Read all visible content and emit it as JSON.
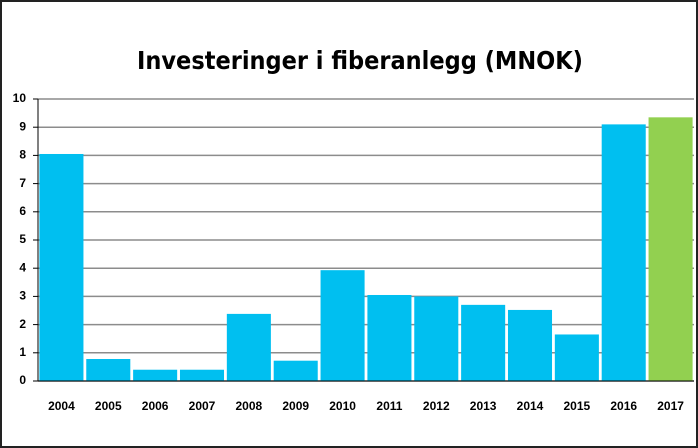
{
  "chart_data": {
    "type": "bar",
    "title": "Investeringer i fiberanlegg (MNOK)",
    "categories": [
      "2004",
      "2005",
      "2006",
      "2007",
      "2008",
      "2009",
      "2010",
      "2011",
      "2012",
      "2013",
      "2014",
      "2015",
      "2016",
      "2017"
    ],
    "values": [
      8.05,
      0.78,
      0.4,
      0.4,
      2.38,
      0.72,
      3.93,
      3.05,
      3.0,
      2.7,
      2.52,
      1.65,
      9.1,
      9.35
    ],
    "colors": [
      "#00bff0",
      "#00bff0",
      "#00bff0",
      "#00bff0",
      "#00bff0",
      "#00bff0",
      "#00bff0",
      "#00bff0",
      "#00bff0",
      "#00bff0",
      "#00bff0",
      "#00bff0",
      "#00bff0",
      "#92d050"
    ],
    "ylim": [
      0,
      10
    ],
    "yticks": [
      0,
      1,
      2,
      3,
      4,
      5,
      6,
      7,
      8,
      9,
      10
    ],
    "grid": true
  }
}
